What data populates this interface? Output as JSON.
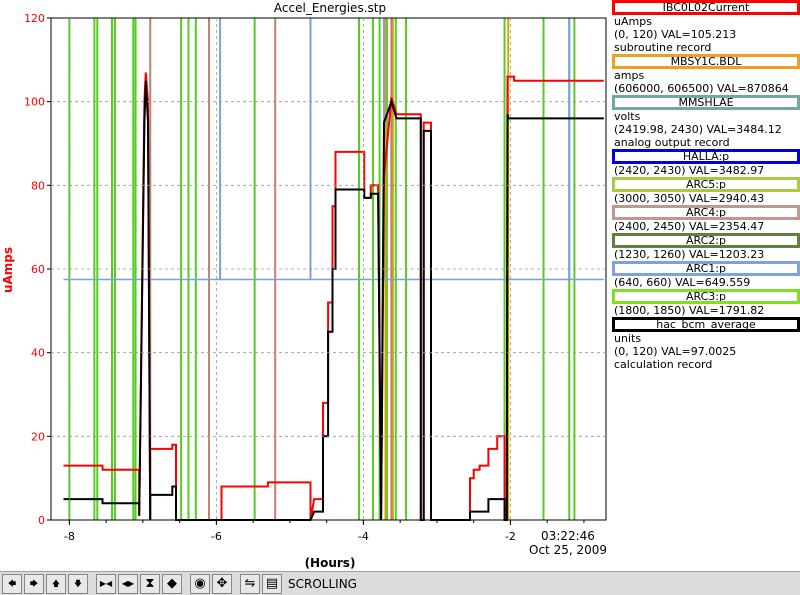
{
  "window_title": "Accel_Energies.stp",
  "chart_data": {
    "type": "line",
    "title": "Accel_Energies.stp",
    "xlabel": "(Hours)",
    "ylabel": "uAmps",
    "xlim": [
      -8.25,
      -0.7
    ],
    "ylim": [
      0,
      120
    ],
    "x_ticks": [
      -8,
      -6,
      -4,
      -2
    ],
    "x_tick_labels": [
      "-8",
      "-6",
      "-4",
      "-2"
    ],
    "y_ticks": [
      0,
      20,
      40,
      60,
      80,
      100,
      120
    ],
    "y_tick_labels": [
      "0",
      "20",
      "40",
      "60",
      "80",
      "100",
      "120"
    ],
    "end_time": "03:22:46",
    "end_date": "Oct 25, 2009",
    "grid": true,
    "series": [
      {
        "name": "IBC0L02Current",
        "color": "#ff0000",
        "x": [
          -8.08,
          -7.55,
          -7.55,
          -7.05,
          -7.05,
          -6.98,
          -6.96,
          -6.93,
          -6.9,
          -6.9,
          -6.6,
          -6.6,
          -6.55,
          -6.55,
          -5.93,
          -5.93,
          -5.3,
          -5.3,
          -4.72,
          -4.72,
          -4.67,
          -4.55,
          -4.55,
          -4.48,
          -4.48,
          -4.42,
          -4.42,
          -4.38,
          -4.38,
          -4.0,
          -3.99,
          -3.99,
          -3.9,
          -3.9,
          -3.8,
          -3.76,
          -3.72,
          -3.72,
          -3.62,
          -3.62,
          -3.55,
          -3.55,
          -3.22,
          -3.22,
          -3.18,
          -3.18,
          -3.08,
          -3.08,
          -2.55,
          -2.55,
          -2.5,
          -2.5,
          -2.42,
          -2.42,
          -2.3,
          -2.3,
          -2.18,
          -2.18,
          -2.08,
          -2.08,
          -2.05,
          -2.04,
          -2.03,
          -1.95,
          -1.95,
          -0.73
        ],
        "y": [
          13,
          13,
          12,
          12,
          1,
          100,
          107,
          100,
          0,
          17,
          17,
          18,
          18,
          0,
          0,
          8,
          8,
          9,
          9,
          0,
          5,
          5,
          28,
          28,
          52,
          52,
          75,
          75,
          88,
          88,
          88,
          77,
          77,
          80,
          80,
          0,
          82,
          82,
          101,
          101,
          97,
          97,
          97,
          0,
          0,
          95,
          95,
          0,
          0,
          10,
          10,
          12,
          12,
          13,
          13,
          17,
          17,
          20,
          20,
          0,
          0,
          106,
          106,
          106,
          105,
          105
        ]
      },
      {
        "name": "hac_bcm_average",
        "color": "#000000",
        "x": [
          -8.08,
          -7.55,
          -7.55,
          -7.05,
          -7.05,
          -6.98,
          -6.96,
          -6.93,
          -6.9,
          -6.9,
          -6.6,
          -6.6,
          -6.55,
          -6.55,
          -4.72,
          -4.72,
          -4.67,
          -4.55,
          -4.55,
          -4.48,
          -4.48,
          -4.42,
          -4.42,
          -4.38,
          -4.38,
          -4.0,
          -3.99,
          -3.99,
          -3.9,
          -3.9,
          -3.8,
          -3.76,
          -3.72,
          -3.72,
          -3.62,
          -3.62,
          -3.55,
          -3.55,
          -3.22,
          -3.22,
          -3.18,
          -3.18,
          -3.08,
          -3.08,
          -2.55,
          -2.55,
          -2.3,
          -2.3,
          -2.08,
          -2.08,
          -2.05,
          -2.04,
          -2.03,
          -0.73
        ],
        "y": [
          5,
          5,
          4,
          4,
          1,
          95,
          105,
          95,
          0,
          6,
          6,
          8,
          8,
          0,
          0,
          0,
          2,
          2,
          20,
          20,
          45,
          45,
          60,
          60,
          79,
          79,
          79,
          77,
          77,
          78,
          78,
          0,
          95,
          95,
          100,
          100,
          96,
          96,
          96,
          0,
          0,
          93,
          93,
          0,
          0,
          2,
          2,
          5,
          5,
          0,
          0,
          97,
          96,
          96
        ]
      },
      {
        "name": "HALLA:p",
        "color": "#7b9ee8",
        "x": [
          -8.08,
          -0.73
        ],
        "y": [
          57.5,
          57.5
        ],
        "spikes_x": [
          -5.95,
          -4.72,
          -3.72,
          -1.2
        ]
      },
      {
        "name": "ARC1:p",
        "color": "#55cc22",
        "vlines_x": [
          -8.0,
          -7.66,
          -7.62,
          -7.42,
          -7.38,
          -7.13,
          -7.1,
          -6.48,
          -6.38,
          -6.28,
          -5.48,
          -4.06,
          -3.87,
          -3.78,
          -3.68,
          -3.56,
          -3.42,
          -2.08,
          -1.55,
          -1.2,
          -1.13
        ]
      },
      {
        "name": "ARC3:p",
        "color": "#ccaa00",
        "vlines_x": [
          -3.7,
          -3.6,
          -2.03
        ]
      },
      {
        "name": "ARC2:p",
        "color": "#c08070",
        "vlines_x": [
          -6.9,
          -6.1,
          -5.2,
          -3.62
        ]
      }
    ]
  },
  "legend": [
    {
      "box": "IBC0L02Current",
      "color": "#ff0000",
      "lines": [
        "uAmps",
        "(0, 120) VAL=105.213",
        "subroutine record"
      ]
    },
    {
      "box": "MBSY1C.BDL",
      "color": "#f0a020",
      "lines": [
        "amps",
        "(606000, 606500) VAL=870864"
      ]
    },
    {
      "box": "MMSHLAE",
      "color": "#70a8a8",
      "lines": [
        "volts",
        "(2419.98, 2430) VAL=3484.12",
        "analog output record"
      ]
    },
    {
      "box": "HALLA:p",
      "color": "#0000dd",
      "lines": [
        "(2420, 2430) VAL=3482.97"
      ]
    },
    {
      "box": "ARC5:p",
      "color": "#a8cc40",
      "lines": [
        "(3000, 3050) VAL=2940.43"
      ]
    },
    {
      "box": "ARC4:p",
      "color": "#c09890",
      "lines": [
        "(2400, 2450) VAL=2354.47"
      ]
    },
    {
      "box": "ARC2:p",
      "color": "#608040",
      "lines": [
        "(1230, 1260) VAL=1203.23"
      ]
    },
    {
      "box": "ARC1:p",
      "color": "#80a0e0",
      "lines": [
        "(640, 660) VAL=649.559"
      ]
    },
    {
      "box": "ARC3:p",
      "color": "#80e020",
      "lines": [
        "(1800, 1850) VAL=1791.82"
      ]
    },
    {
      "box": "hac_bcm_average",
      "color": "#000000",
      "lines": [
        "units",
        "(0, 120) VAL=97.0025",
        "calculation record"
      ]
    }
  ],
  "toolbar": {
    "buttons": [
      {
        "name": "arrow-left-icon",
        "glyph": "🡄"
      },
      {
        "name": "arrow-right-icon",
        "glyph": "🡆"
      },
      {
        "name": "arrow-up-icon",
        "glyph": "🡅"
      },
      {
        "name": "arrow-down-icon",
        "glyph": "🡇"
      },
      {
        "name": "zoom-in-x-icon",
        "glyph": "▶◀"
      },
      {
        "name": "zoom-out-x-icon",
        "glyph": "◀▶"
      },
      {
        "name": "zoom-in-y-icon",
        "glyph": "⧗"
      },
      {
        "name": "zoom-out-y-icon",
        "glyph": "◆"
      },
      {
        "name": "record-icon",
        "glyph": "◉"
      },
      {
        "name": "pan-icon",
        "glyph": "✥"
      },
      {
        "name": "scroll-mode-icon",
        "glyph": "⇋"
      },
      {
        "name": "config-icon",
        "glyph": "▤"
      }
    ],
    "mode_label": "SCROLLING"
  }
}
